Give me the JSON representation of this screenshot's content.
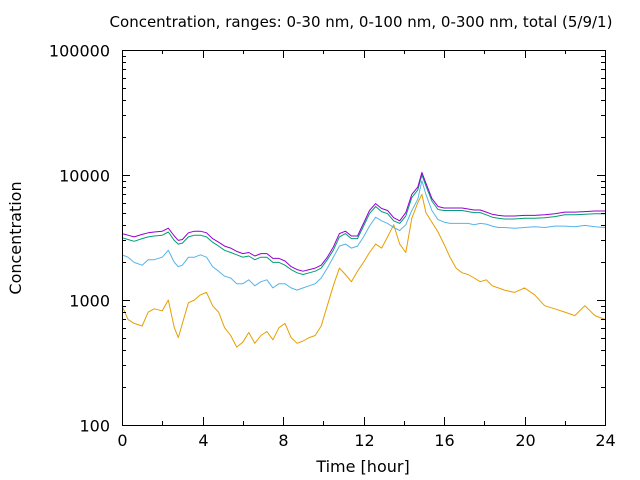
{
  "chart_data": {
    "type": "line",
    "title": "Concentration, ranges: 0-30 nm, 0-100 nm, 0-300 nm, total (5/9/1)",
    "xlabel": "Time [hour]",
    "ylabel": "Concentration",
    "xlim": [
      0,
      24
    ],
    "ylim": [
      100,
      100000
    ],
    "yscale": "log",
    "grid": false,
    "legend": "none",
    "x_ticks": [
      {
        "value": 0,
        "label": "0"
      },
      {
        "value": 4,
        "label": "4"
      },
      {
        "value": 8,
        "label": "8"
      },
      {
        "value": 12,
        "label": "12"
      },
      {
        "value": 16,
        "label": "16"
      },
      {
        "value": 20,
        "label": "20"
      },
      {
        "value": 24,
        "label": "24"
      }
    ],
    "y_ticks": [
      {
        "value": 100,
        "label": "100"
      },
      {
        "value": 1000,
        "label": "1000"
      },
      {
        "value": 10000,
        "label": "10000"
      },
      {
        "value": 100000,
        "label": "100000"
      }
    ],
    "series": [
      {
        "color": "#e69f00",
        "x": [
          0,
          0.3,
          0.6,
          1,
          1.3,
          1.6,
          2,
          2.3,
          2.6,
          2.8,
          3,
          3.3,
          3.6,
          3.9,
          4.2,
          4.5,
          4.8,
          5.1,
          5.4,
          5.7,
          6,
          6.3,
          6.6,
          6.9,
          7.2,
          7.5,
          7.8,
          8.1,
          8.4,
          8.7,
          9,
          9.3,
          9.6,
          9.9,
          10.2,
          10.5,
          10.8,
          11.1,
          11.4,
          11.7,
          12,
          12.3,
          12.6,
          12.9,
          13.2,
          13.5,
          13.8,
          14.1,
          14.4,
          14.7,
          14.9,
          15.1,
          15.4,
          15.7,
          16,
          16.3,
          16.6,
          16.9,
          17.2,
          17.5,
          17.8,
          18.1,
          18.4,
          18.7,
          19,
          19.5,
          20,
          20.5,
          21,
          21.5,
          22,
          22.5,
          23,
          23.5,
          24
        ],
        "y": [
          900,
          700,
          650,
          620,
          800,
          850,
          820,
          1000,
          600,
          500,
          650,
          950,
          1000,
          1100,
          1150,
          900,
          800,
          600,
          520,
          420,
          460,
          550,
          450,
          520,
          560,
          480,
          600,
          650,
          500,
          450,
          470,
          500,
          520,
          620,
          900,
          1300,
          1800,
          1600,
          1400,
          1700,
          2000,
          2400,
          2800,
          2600,
          3200,
          4000,
          2800,
          2400,
          4500,
          6000,
          7000,
          5000,
          4200,
          3500,
          2800,
          2200,
          1800,
          1650,
          1600,
          1500,
          1400,
          1450,
          1300,
          1250,
          1200,
          1150,
          1250,
          1100,
          900,
          850,
          800,
          750,
          900,
          750,
          700
        ]
      },
      {
        "color": "#56b4e9",
        "x": [
          0,
          0.3,
          0.6,
          1,
          1.3,
          1.6,
          2,
          2.3,
          2.6,
          2.8,
          3,
          3.3,
          3.6,
          3.9,
          4.2,
          4.5,
          4.8,
          5.1,
          5.4,
          5.7,
          6,
          6.3,
          6.6,
          6.9,
          7.2,
          7.5,
          7.8,
          8.1,
          8.4,
          8.7,
          9,
          9.3,
          9.6,
          9.9,
          10.2,
          10.5,
          10.8,
          11.1,
          11.4,
          11.7,
          12,
          12.3,
          12.6,
          12.9,
          13.2,
          13.5,
          13.8,
          14.1,
          14.4,
          14.7,
          14.9,
          15.1,
          15.4,
          15.7,
          16,
          16.3,
          16.6,
          16.9,
          17.2,
          17.5,
          17.8,
          18.1,
          18.4,
          18.7,
          19,
          19.5,
          20,
          20.5,
          21,
          21.5,
          22,
          22.5,
          23,
          23.5,
          24
        ],
        "y": [
          2300,
          2200,
          2000,
          1900,
          2100,
          2100,
          2200,
          2500,
          2000,
          1850,
          1900,
          2200,
          2200,
          2300,
          2200,
          1850,
          1700,
          1550,
          1500,
          1350,
          1350,
          1450,
          1300,
          1400,
          1450,
          1250,
          1350,
          1350,
          1250,
          1200,
          1250,
          1300,
          1350,
          1500,
          1800,
          2200,
          2700,
          2800,
          2600,
          2700,
          3200,
          3900,
          4600,
          4300,
          4100,
          3800,
          3600,
          4000,
          5200,
          6400,
          9000,
          7000,
          5200,
          4400,
          4200,
          4100,
          4100,
          4100,
          4100,
          4000,
          4100,
          4050,
          3900,
          3800,
          3800,
          3750,
          3800,
          3850,
          3800,
          3900,
          3900,
          3850,
          3950,
          3850,
          3800
        ]
      },
      {
        "color": "#009e73",
        "x": [
          0,
          0.3,
          0.6,
          1,
          1.3,
          1.6,
          2,
          2.3,
          2.6,
          2.8,
          3,
          3.3,
          3.6,
          3.9,
          4.2,
          4.5,
          4.8,
          5.1,
          5.4,
          5.7,
          6,
          6.3,
          6.6,
          6.9,
          7.2,
          7.5,
          7.8,
          8.1,
          8.4,
          8.7,
          9,
          9.3,
          9.6,
          9.9,
          10.2,
          10.5,
          10.8,
          11.1,
          11.4,
          11.7,
          12,
          12.3,
          12.6,
          12.9,
          13.2,
          13.5,
          13.8,
          14.1,
          14.4,
          14.7,
          14.9,
          15.1,
          15.4,
          15.7,
          16,
          16.3,
          16.6,
          16.9,
          17.2,
          17.5,
          17.8,
          18.1,
          18.4,
          18.7,
          19,
          19.5,
          20,
          20.5,
          21,
          21.5,
          22,
          22.5,
          23,
          23.5,
          24
        ],
        "y": [
          3150,
          3050,
          2950,
          3100,
          3200,
          3250,
          3300,
          3500,
          3000,
          2800,
          2850,
          3200,
          3300,
          3300,
          3200,
          2900,
          2700,
          2500,
          2400,
          2300,
          2200,
          2250,
          2100,
          2200,
          2200,
          2000,
          2000,
          1900,
          1750,
          1650,
          1600,
          1650,
          1700,
          1800,
          2100,
          2500,
          3200,
          3400,
          3100,
          3100,
          3900,
          4900,
          5600,
          5100,
          4900,
          4300,
          4100,
          4700,
          6600,
          7600,
          10000,
          8200,
          6200,
          5300,
          5200,
          5200,
          5200,
          5200,
          5100,
          5000,
          5000,
          4800,
          4600,
          4500,
          4450,
          4450,
          4500,
          4500,
          4550,
          4650,
          4800,
          4800,
          4850,
          4900,
          4900
        ]
      },
      {
        "color": "#9400d3",
        "x": [
          0,
          0.3,
          0.6,
          1,
          1.3,
          1.6,
          2,
          2.3,
          2.6,
          2.8,
          3,
          3.3,
          3.6,
          3.9,
          4.2,
          4.5,
          4.8,
          5.1,
          5.4,
          5.7,
          6,
          6.3,
          6.6,
          6.9,
          7.2,
          7.5,
          7.8,
          8.1,
          8.4,
          8.7,
          9,
          9.3,
          9.6,
          9.9,
          10.2,
          10.5,
          10.8,
          11.1,
          11.4,
          11.7,
          12,
          12.3,
          12.6,
          12.9,
          13.2,
          13.5,
          13.8,
          14.1,
          14.4,
          14.7,
          14.9,
          15.1,
          15.4,
          15.7,
          16,
          16.3,
          16.6,
          16.9,
          17.2,
          17.5,
          17.8,
          18.1,
          18.4,
          18.7,
          19,
          19.5,
          20,
          20.5,
          21,
          21.5,
          22,
          22.5,
          23,
          23.5,
          24
        ],
        "y": [
          3400,
          3300,
          3200,
          3350,
          3450,
          3500,
          3550,
          3750,
          3250,
          3000,
          3050,
          3450,
          3550,
          3550,
          3450,
          3100,
          2900,
          2700,
          2600,
          2450,
          2350,
          2400,
          2250,
          2350,
          2350,
          2150,
          2150,
          2050,
          1850,
          1750,
          1700,
          1750,
          1800,
          1900,
          2200,
          2650,
          3400,
          3550,
          3250,
          3250,
          4100,
          5200,
          5900,
          5400,
          5200,
          4550,
          4300,
          5000,
          7000,
          8000,
          10500,
          8600,
          6500,
          5600,
          5450,
          5450,
          5450,
          5450,
          5350,
          5250,
          5250,
          5050,
          4850,
          4750,
          4700,
          4700,
          4750,
          4750,
          4800,
          4900,
          5050,
          5050,
          5100,
          5150,
          5150
        ]
      }
    ]
  }
}
